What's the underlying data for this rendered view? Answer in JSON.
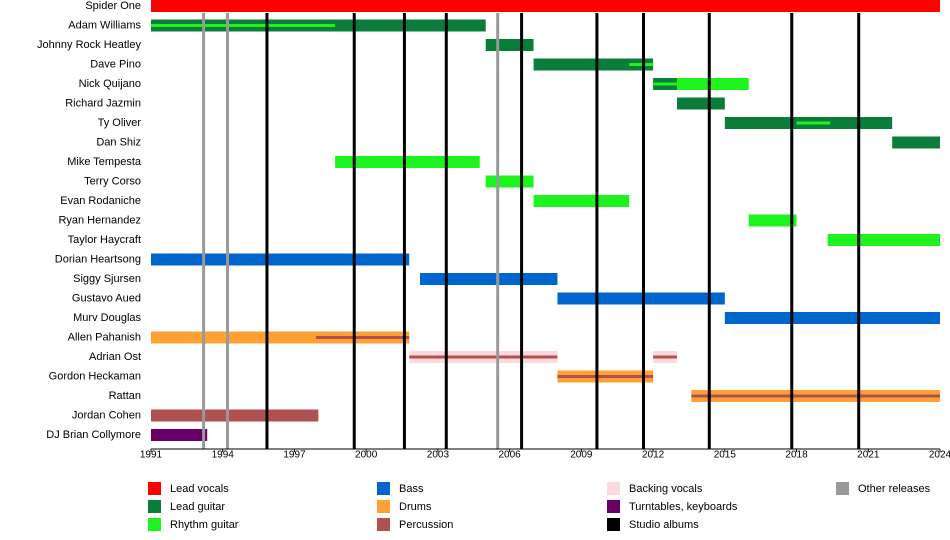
{
  "chart_data": {
    "type": "timeline",
    "xlim": [
      1991,
      2024
    ],
    "xticks": [
      1991,
      1994,
      1997,
      2000,
      2003,
      2006,
      2009,
      2012,
      2015,
      2018,
      2021,
      2024
    ],
    "roles": [
      {
        "name": "Lead vocals",
        "color": "#ff0000"
      },
      {
        "name": "Lead guitar",
        "color": "#0b7d3a"
      },
      {
        "name": "Rhythm guitar",
        "color": "#1df31d"
      },
      {
        "name": "Bass",
        "color": "#0066cc"
      },
      {
        "name": "Drums",
        "color": "#ffa033"
      },
      {
        "name": "Percussion",
        "color": "#b05050"
      },
      {
        "name": "Backing vocals",
        "color": "#ffd9e0"
      },
      {
        "name": "Turntables, keyboards",
        "color": "#660066"
      }
    ],
    "releases": [
      {
        "name": "Studio albums",
        "color": "#000000",
        "dates": [
          1995.85,
          1999.5,
          2001.6,
          2003.35,
          2006.5,
          2009.65,
          2011.6,
          2014.35,
          2017.8,
          2020.6
        ]
      },
      {
        "name": "Other releases",
        "color": "#999999",
        "dates": [
          1993.2,
          1994.2,
          2005.5
        ]
      }
    ],
    "members": [
      {
        "name": "Spider One",
        "periods": [
          {
            "role": "Lead vocals",
            "start": 1991,
            "end": 2024
          }
        ]
      },
      {
        "name": "Adam Williams",
        "periods": [
          {
            "role": "Lead guitar",
            "start": 1991,
            "end": 2005
          },
          {
            "role": "Rhythm guitar",
            "start": 1991,
            "end": 1998.7,
            "inner": true
          }
        ]
      },
      {
        "name": "Johnny Rock Heatley",
        "periods": [
          {
            "role": "Lead guitar",
            "start": 2005,
            "end": 2007
          }
        ]
      },
      {
        "name": "Dave Pino",
        "periods": [
          {
            "role": "Lead guitar",
            "start": 2007,
            "end": 2012
          },
          {
            "role": "Rhythm guitar",
            "start": 2011,
            "end": 2012,
            "inner": true
          }
        ]
      },
      {
        "name": "Nick Quijano",
        "periods": [
          {
            "role": "Lead guitar",
            "start": 2012,
            "end": 2013
          },
          {
            "role": "Rhythm guitar",
            "start": 2012,
            "end": 2013,
            "inner": true
          },
          {
            "role": "Rhythm guitar",
            "start": 2013,
            "end": 2016
          }
        ]
      },
      {
        "name": "Richard Jazmin",
        "periods": [
          {
            "role": "Lead guitar",
            "start": 2013,
            "end": 2015
          }
        ]
      },
      {
        "name": "Ty Oliver",
        "periods": [
          {
            "role": "Lead guitar",
            "start": 2015,
            "end": 2022
          },
          {
            "role": "Rhythm guitar",
            "start": 2018,
            "end": 2019.4,
            "inner": true
          }
        ]
      },
      {
        "name": "Dan Shiz",
        "periods": [
          {
            "role": "Lead guitar",
            "start": 2022,
            "end": 2024
          }
        ]
      },
      {
        "name": "Mike Tempesta",
        "periods": [
          {
            "role": "Rhythm guitar",
            "start": 1998.7,
            "end": 2004.75
          }
        ]
      },
      {
        "name": "Terry Corso",
        "periods": [
          {
            "role": "Rhythm guitar",
            "start": 2005,
            "end": 2007
          }
        ]
      },
      {
        "name": "Evan Rodaniche",
        "periods": [
          {
            "role": "Rhythm guitar",
            "start": 2007,
            "end": 2011
          }
        ]
      },
      {
        "name": "Ryan Hernandez",
        "periods": [
          {
            "role": "Rhythm guitar",
            "start": 2016,
            "end": 2018
          }
        ]
      },
      {
        "name": "Taylor Haycraft",
        "periods": [
          {
            "role": "Rhythm guitar",
            "start": 2019.3,
            "end": 2024
          }
        ]
      },
      {
        "name": "Dorian Heartsong",
        "periods": [
          {
            "role": "Bass",
            "start": 1991,
            "end": 2001.8
          }
        ]
      },
      {
        "name": "Siggy Sjursen",
        "periods": [
          {
            "role": "Bass",
            "start": 2002.25,
            "end": 2008
          }
        ]
      },
      {
        "name": "Gustavo Aued",
        "periods": [
          {
            "role": "Bass",
            "start": 2008,
            "end": 2015
          }
        ]
      },
      {
        "name": "Murv Douglas",
        "periods": [
          {
            "role": "Bass",
            "start": 2015,
            "end": 2024
          }
        ]
      },
      {
        "name": "Allen Pahanish",
        "periods": [
          {
            "role": "Drums",
            "start": 1991,
            "end": 2001.8
          },
          {
            "role": "Percussion",
            "start": 1997.9,
            "end": 2001.8,
            "inner": true
          }
        ]
      },
      {
        "name": "Adrian Ost",
        "periods": [
          {
            "role": "Backing vocals",
            "start": 2001.8,
            "end": 2008
          },
          {
            "role": "Percussion",
            "start": 2001.8,
            "end": 2008,
            "inner": true
          },
          {
            "role": "Backing vocals",
            "start": 2012,
            "end": 2013
          },
          {
            "role": "Percussion",
            "start": 2012,
            "end": 2013,
            "inner": true
          }
        ]
      },
      {
        "name": "Gordon Heckaman",
        "periods": [
          {
            "role": "Drums",
            "start": 2008,
            "end": 2012
          },
          {
            "role": "Percussion",
            "start": 2008,
            "end": 2012,
            "inner": true
          }
        ]
      },
      {
        "name": "Rattan",
        "periods": [
          {
            "role": "Drums",
            "start": 2013.6,
            "end": 2024
          },
          {
            "role": "Percussion",
            "start": 2013.6,
            "end": 2024,
            "inner": true
          }
        ]
      },
      {
        "name": "Jordan Cohen",
        "periods": [
          {
            "role": "Percussion",
            "start": 1991,
            "end": 1998
          }
        ]
      },
      {
        "name": "DJ Brian Collymore",
        "periods": [
          {
            "role": "Turntables, keyboards",
            "start": 1991,
            "end": 1993.35
          }
        ]
      }
    ]
  }
}
